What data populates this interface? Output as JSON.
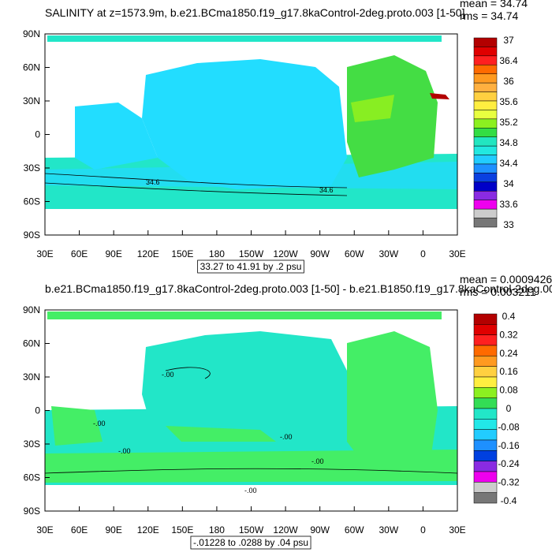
{
  "panels": [
    {
      "title": "SALINITY at z=1573.9m, b.e21.BCma1850.f19_g17.8kaControl-2deg.proto.003 [1-50]",
      "mean": "mean = 34.74",
      "rms": "rms = 34.74",
      "lat_labels": [
        "90N",
        "60N",
        "30N",
        "0",
        "30S",
        "60S",
        "90S"
      ],
      "lon_labels": [
        "30E",
        "60E",
        "90E",
        "120E",
        "150E",
        "180",
        "150W",
        "120W",
        "90W",
        "60W",
        "30W",
        "0",
        "30E"
      ],
      "colorbar": {
        "labels": [
          "37",
          "36.4",
          "36",
          "35.6",
          "35.2",
          "34.8",
          "34.4",
          "34",
          "33.6",
          "33"
        ],
        "colors": [
          "#b30000",
          "#e00000",
          "#ff2020",
          "#ff6a00",
          "#ff9a20",
          "#ffb040",
          "#ffd040",
          "#ffee40",
          "#e8ff40",
          "#8cf020",
          "#33dd44",
          "#22e6c0",
          "#22e8e0",
          "#22ccff",
          "#1e90ff",
          "#0a40e0",
          "#0000c8",
          "#8a2be2",
          "#ee00ee",
          "#cccccc",
          "#777777"
        ]
      },
      "contour_info": "33.27 to 41.91 by .2 psu",
      "contour_labels": [
        "34.6",
        "34.6"
      ]
    },
    {
      "title": "b.e21.BCma1850.f19_g17.8kaControl-2deg.proto.003 [1-50] - b.e21.B1850.f19_g17.8kaControl-2deg.00",
      "mean": "mean = 0.0009426",
      "rms": "rms = 0.003211",
      "lat_labels": [
        "90N",
        "60N",
        "30N",
        "0",
        "30S",
        "60S",
        "90S"
      ],
      "lon_labels": [
        "30E",
        "60E",
        "90E",
        "120E",
        "150E",
        "180",
        "150W",
        "120W",
        "90W",
        "60W",
        "30W",
        "0",
        "30E"
      ],
      "colorbar": {
        "labels": [
          "0.4",
          "0.32",
          "0.24",
          "0.16",
          "0.08",
          "0",
          "-0.08",
          "-0.16",
          "-0.24",
          "-0.32",
          "-0.4"
        ],
        "colors": [
          "#b30000",
          "#e00000",
          "#ff2020",
          "#ff6a00",
          "#ff9a20",
          "#ffd040",
          "#ffee40",
          "#8cf020",
          "#33dd55",
          "#22e6c8",
          "#22e8e8",
          "#22ccff",
          "#1e90ff",
          "#0040e0",
          "#8a2be2",
          "#ee00ee",
          "#cccccc",
          "#777777"
        ]
      },
      "contour_info": "-.01228 to .0288 by .04 psu",
      "contour_labels": [
        "-.00",
        "-.00",
        "-.00",
        "-.00",
        "-.00",
        "-.00"
      ]
    }
  ]
}
